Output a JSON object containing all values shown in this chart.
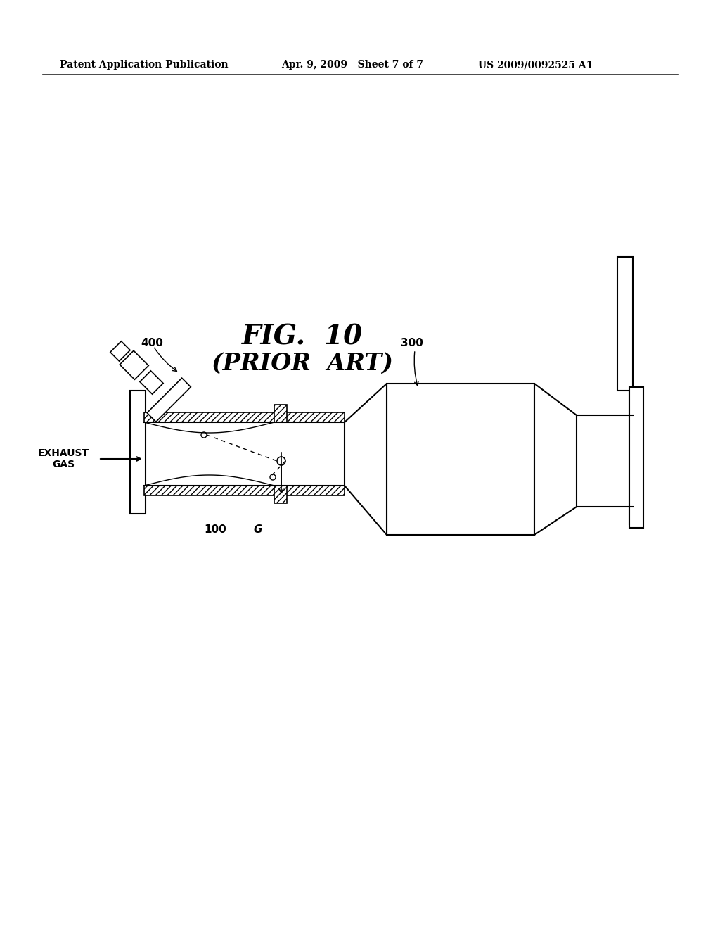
{
  "bg_color": "#ffffff",
  "header_left": "Patent Application Publication",
  "header_mid": "Apr. 9, 2009   Sheet 7 of 7",
  "header_right": "US 2009/0092525 A1",
  "fig_title_line1": "FIG.  10",
  "fig_title_line2": "(PRIOR  ART)",
  "label_400": "400",
  "label_300": "300",
  "label_100": "100",
  "label_G": "G",
  "label_exhaust": "EXHAUST\nGAS"
}
